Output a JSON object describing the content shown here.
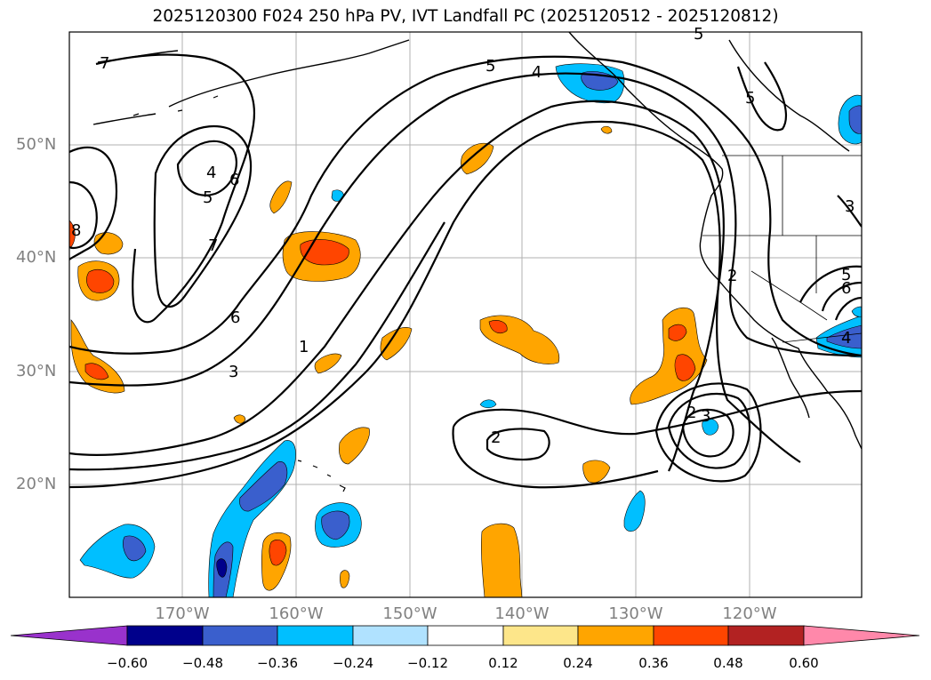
{
  "title": "2025120300 F024 250 hPa PV, IVT Landfall PC (2025120512 - 2025120812)",
  "lat_labels": [
    "50°N",
    "40°N",
    "30°N",
    "20°N"
  ],
  "lon_labels": [
    "170°W",
    "160°W",
    "150°W",
    "140°W",
    "130°W",
    "120°W"
  ],
  "contour_labels": [
    "7",
    "5",
    "4",
    "5",
    "4",
    "6",
    "7",
    "6",
    "8",
    "3",
    "1",
    "2",
    "2",
    "3",
    "2",
    "5",
    "6",
    "4",
    "5",
    "3",
    "5"
  ],
  "colorbar": {
    "ticks": [
      "−0.60",
      "−0.48",
      "−0.36",
      "−0.24",
      "−0.12",
      "0.12",
      "0.24",
      "0.36",
      "0.48",
      "0.60"
    ],
    "colors": [
      "#9932cc",
      "#00008b",
      "#3a5fcd",
      "#00bfff",
      "#b0e2ff",
      "#ffffff",
      "#fde68a",
      "#ffa500",
      "#ff4500",
      "#b22222",
      "#ff88aa"
    ]
  }
}
